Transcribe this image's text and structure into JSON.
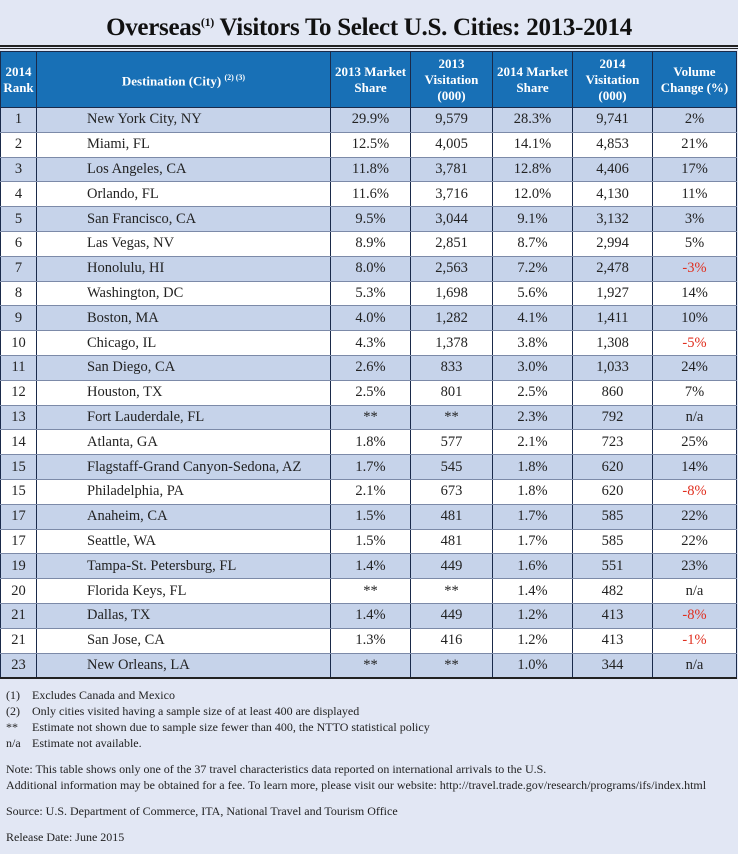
{
  "title": {
    "text": "Overseas",
    "sup": "(1)",
    "rest": " Visitors To Select U.S. Cities: 2013-2014"
  },
  "headers": {
    "rank": "2014 Rank",
    "destination": "Destination (City)",
    "destination_sup": "(2) (3)",
    "ms2013": "2013 Market Share",
    "v2013": "2013 Visitation (000)",
    "ms2014": "2014 Market Share",
    "v2014": "2014 Visitation (000)",
    "change": "Volume Change (%)"
  },
  "colors": {
    "header": "#1870b6",
    "band": "#c6d3ea",
    "negative": "#e03020",
    "background": "#e2e7f4"
  },
  "rows": [
    [
      "1",
      "New York City, NY",
      "29.9%",
      "9,579",
      "28.3%",
      "9,741",
      "2%"
    ],
    [
      "2",
      "Miami, FL",
      "12.5%",
      "4,005",
      "14.1%",
      "4,853",
      "21%"
    ],
    [
      "3",
      "Los Angeles, CA",
      "11.8%",
      "3,781",
      "12.8%",
      "4,406",
      "17%"
    ],
    [
      "4",
      "Orlando, FL",
      "11.6%",
      "3,716",
      "12.0%",
      "4,130",
      "11%"
    ],
    [
      "5",
      "San Francisco, CA",
      "9.5%",
      "3,044",
      "9.1%",
      "3,132",
      "3%"
    ],
    [
      "6",
      "Las Vegas, NV",
      "8.9%",
      "2,851",
      "8.7%",
      "2,994",
      "5%"
    ],
    [
      "7",
      "Honolulu, HI",
      "8.0%",
      "2,563",
      "7.2%",
      "2,478",
      "-3%"
    ],
    [
      "8",
      "Washington, DC",
      "5.3%",
      "1,698",
      "5.6%",
      "1,927",
      "14%"
    ],
    [
      "9",
      "Boston, MA",
      "4.0%",
      "1,282",
      "4.1%",
      "1,411",
      "10%"
    ],
    [
      "10",
      "Chicago, IL",
      "4.3%",
      "1,378",
      "3.8%",
      "1,308",
      "-5%"
    ],
    [
      "11",
      "San Diego, CA",
      "2.6%",
      "833",
      "3.0%",
      "1,033",
      "24%"
    ],
    [
      "12",
      "Houston, TX",
      "2.5%",
      "801",
      "2.5%",
      "860",
      "7%"
    ],
    [
      "13",
      "Fort Lauderdale,  FL",
      "**",
      "**",
      "2.3%",
      "792",
      "n/a"
    ],
    [
      "14",
      "Atlanta, GA",
      "1.8%",
      "577",
      "2.1%",
      "723",
      "25%"
    ],
    [
      "15",
      "Flagstaff-Grand Canyon-Sedona, AZ",
      "1.7%",
      "545",
      "1.8%",
      "620",
      "14%"
    ],
    [
      "15",
      "Philadelphia, PA",
      "2.1%",
      "673",
      "1.8%",
      "620",
      "-8%"
    ],
    [
      "17",
      "Anaheim, CA",
      "1.5%",
      "481",
      "1.7%",
      "585",
      "22%"
    ],
    [
      "17",
      "Seattle, WA",
      "1.5%",
      "481",
      "1.7%",
      "585",
      "22%"
    ],
    [
      "19",
      "Tampa-St. Petersburg, FL",
      "1.4%",
      "449",
      "1.6%",
      "551",
      "23%"
    ],
    [
      "20",
      "Florida Keys, FL",
      "**",
      "**",
      "1.4%",
      "482",
      "n/a"
    ],
    [
      "21",
      "Dallas, TX",
      "1.4%",
      "449",
      "1.2%",
      "413",
      "-8%"
    ],
    [
      "21",
      "San Jose, CA",
      "1.3%",
      "416",
      "1.2%",
      "413",
      "-1%"
    ],
    [
      "23",
      "New Orleans, LA",
      "**",
      "**",
      "1.0%",
      "344",
      "n/a"
    ]
  ],
  "footnotes": [
    {
      "mark": "(1)",
      "text": "Excludes Canada and Mexico"
    },
    {
      "mark": "(2)",
      "text": "Only cities visited having a sample size of at least 400 are displayed"
    },
    {
      "mark": "**",
      "text": "Estimate not shown due to sample size fewer than 400, the NTTO statistical policy"
    },
    {
      "mark": "n/a",
      "text": "Estimate not available."
    }
  ],
  "note1": "Note: This table shows only one of the 37 travel characteristics data reported on international arrivals to the U.S.",
  "note2": "Additional information may be obtained for a fee. To learn more, please visit our website: http://travel.trade.gov/research/programs/ifs/index.html",
  "source": "Source: U.S. Department of Commerce, ITA, National Travel and Tourism Office",
  "release": "Release Date: June 2015"
}
